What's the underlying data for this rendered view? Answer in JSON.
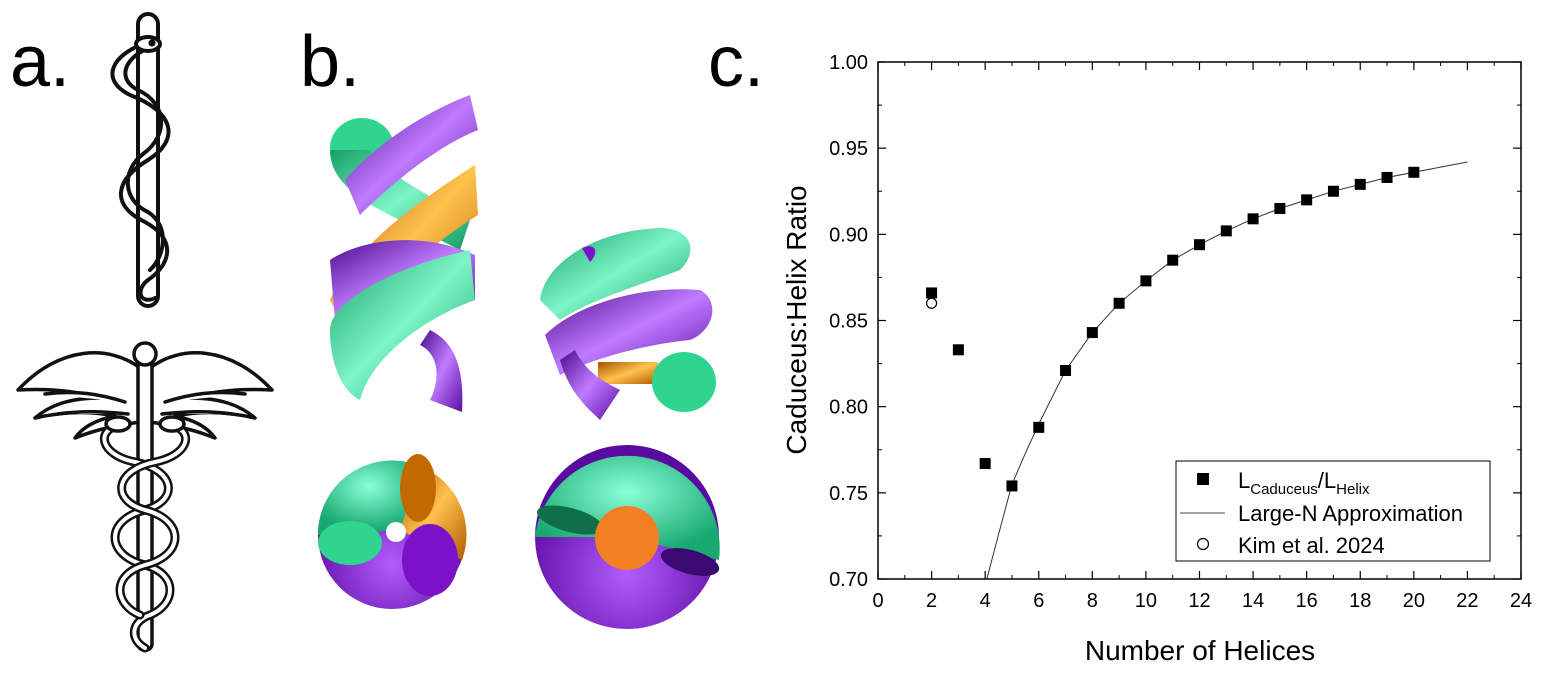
{
  "panels": {
    "a": "a.",
    "b": "b.",
    "c": "c."
  },
  "illustrations": {
    "a_top": "rod-of-asclepius-icon",
    "a_bottom": "caduceus-icon",
    "b_models": "braided-helix-tubes-icon"
  },
  "colors": {
    "green": "#2fd48e",
    "purple": "#7a12c9",
    "orange": "#f07f0a",
    "ink": "#000000"
  },
  "chart_data": {
    "type": "scatter",
    "xlabel": "Number of Helices",
    "ylabel": "Caduceus:Helix Ratio",
    "xlim": [
      0,
      24
    ],
    "ylim": [
      0.7,
      1.0
    ],
    "xticks": [
      "0",
      "2",
      "4",
      "6",
      "8",
      "10",
      "12",
      "14",
      "16",
      "18",
      "20",
      "22",
      "24"
    ],
    "yticks": [
      "0.70",
      "0.75",
      "0.80",
      "0.85",
      "0.90",
      "0.95",
      "1.00"
    ],
    "grid": false,
    "legend_position": "bottom-right",
    "series": [
      {
        "name": "L_Caduceus/L_Helix",
        "legend_main": "L",
        "legend_sub1": "Caduceus",
        "legend_slash": "/L",
        "legend_sub2": "Helix",
        "marker": "filled-square",
        "x": [
          2,
          3,
          4,
          5,
          6,
          7,
          8,
          9,
          10,
          11,
          12,
          13,
          14,
          15,
          16,
          17,
          18,
          19,
          20
        ],
        "y": [
          0.866,
          0.833,
          0.767,
          0.754,
          0.788,
          0.821,
          0.843,
          0.86,
          0.873,
          0.885,
          0.894,
          0.902,
          0.909,
          0.915,
          0.92,
          0.925,
          0.929,
          0.933,
          0.936
        ]
      },
      {
        "name": "Large-N Approximation",
        "marker": "line",
        "x": [
          4.06,
          4.5,
          5,
          5.5,
          6,
          7,
          8,
          9,
          10,
          11,
          12,
          13,
          14,
          15,
          16,
          17,
          18,
          19,
          20,
          21,
          22
        ],
        "y": [
          0.7,
          0.726,
          0.755,
          0.773,
          0.79,
          0.821,
          0.843,
          0.86,
          0.873,
          0.885,
          0.894,
          0.902,
          0.909,
          0.915,
          0.92,
          0.925,
          0.929,
          0.933,
          0.936,
          0.939,
          0.942
        ]
      },
      {
        "name": "Kim et al. 2024",
        "marker": "open-circle",
        "x": [
          2
        ],
        "y": [
          0.86
        ]
      }
    ]
  }
}
